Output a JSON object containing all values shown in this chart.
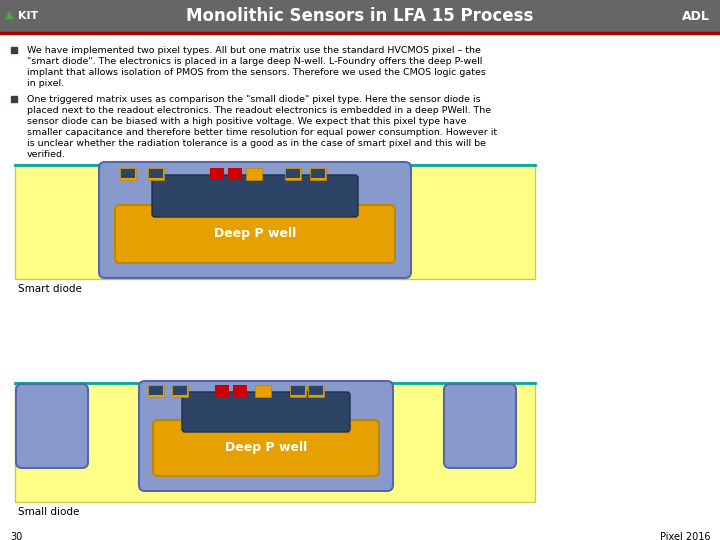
{
  "title": "Monolithic Sensors in LFA 15 Process",
  "header_bg": "#666666",
  "header_text_color": "#ffffff",
  "red_line_color": "#aa0000",
  "bullet_color": "#334433",
  "body_bg": "#ffffff",
  "smart_diode_label": "Smart diode",
  "small_diode_label": "Small diode",
  "deep_p_well_label": "Deep P well",
  "page_num": "30",
  "footer_right": "Pixel 2016",
  "yellow_bg": "#ffff88",
  "orange_rect": "#e6a000",
  "blue_rect": "#8899cc",
  "dark_blue": "#2d4466",
  "red_dot": "#cc0000",
  "teal_line": "#00aaaa",
  "green_line": "#88cc00"
}
